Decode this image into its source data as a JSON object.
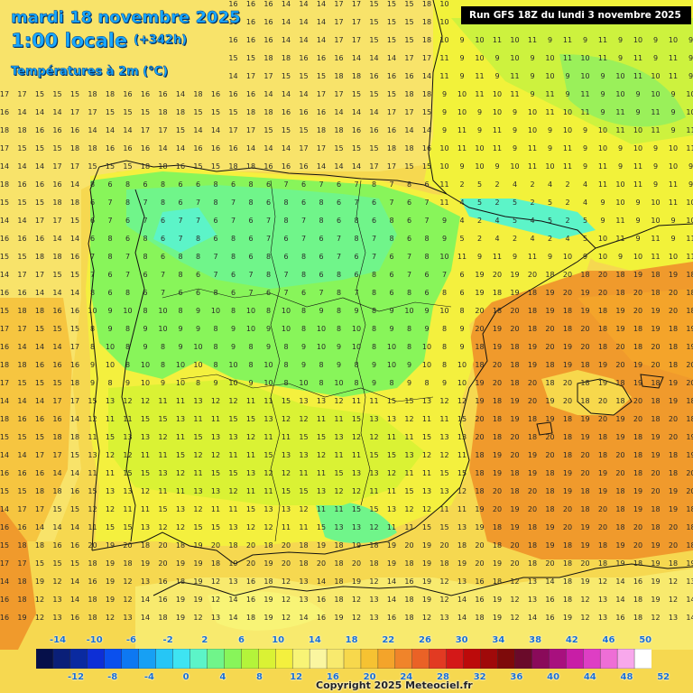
{
  "header": {
    "date": "mardi 18 novembre 2025",
    "time": "1:00 locale",
    "lead": "(+342h)",
    "variable": "Températures à 2m (°C)"
  },
  "run_banner": "Run GFS 18Z du lundi 3 novembre 2025",
  "copyright": "Copyright 2025 Meteociel.fr",
  "map": {
    "region": "Iberian Peninsula and Balearic Islands",
    "variable_unit": "°C",
    "sample_values": {
      "iberian_north_plateau": [
        6,
        7,
        8
      ],
      "pyrenees": [
        2,
        4,
        5
      ],
      "central_spain": [
        8,
        9,
        10
      ],
      "andalusia": [
        11,
        12,
        13,
        15
      ],
      "atlantic_ocean": [
        14,
        15,
        16,
        17,
        18
      ],
      "mediterranean_sea": [
        18,
        19,
        20
      ],
      "southern_france": [
        9,
        10,
        11
      ],
      "north_africa": [
        12,
        13,
        14,
        16,
        18,
        19
      ]
    }
  },
  "colorbar": {
    "top_labels": [
      "-14",
      "-10",
      "-6",
      "-2",
      "2",
      "6",
      "10",
      "14",
      "18",
      "22",
      "26",
      "30",
      "34",
      "38",
      "42",
      "46",
      "50"
    ],
    "bottom_labels": [
      "-12",
      "-8",
      "-4",
      "0",
      "4",
      "8",
      "12",
      "16",
      "20",
      "24",
      "28",
      "32",
      "36",
      "40",
      "44",
      "48",
      "52"
    ],
    "colors": [
      "#06104a",
      "#0a1f78",
      "#0a2aa0",
      "#0d2fd6",
      "#0a50ee",
      "#0d78f2",
      "#17a0f4",
      "#26c6f6",
      "#3ee4f2",
      "#5cf4c8",
      "#70f58a",
      "#88f55a",
      "#b4f43a",
      "#daf234",
      "#f4f03e",
      "#f8f476",
      "#faf6a0",
      "#f8ea6e",
      "#f7d84c",
      "#f6c232",
      "#f4a42a",
      "#f0842a",
      "#ea6226",
      "#e23a22",
      "#d41818",
      "#bc0a0a",
      "#a00a0a",
      "#7e0a0a",
      "#6a0a2a",
      "#8a0a5a",
      "#a8107e",
      "#c81ea6",
      "#de3ec4",
      "#ee6ed6",
      "#f8a8ec",
      "#ffffff"
    ]
  }
}
